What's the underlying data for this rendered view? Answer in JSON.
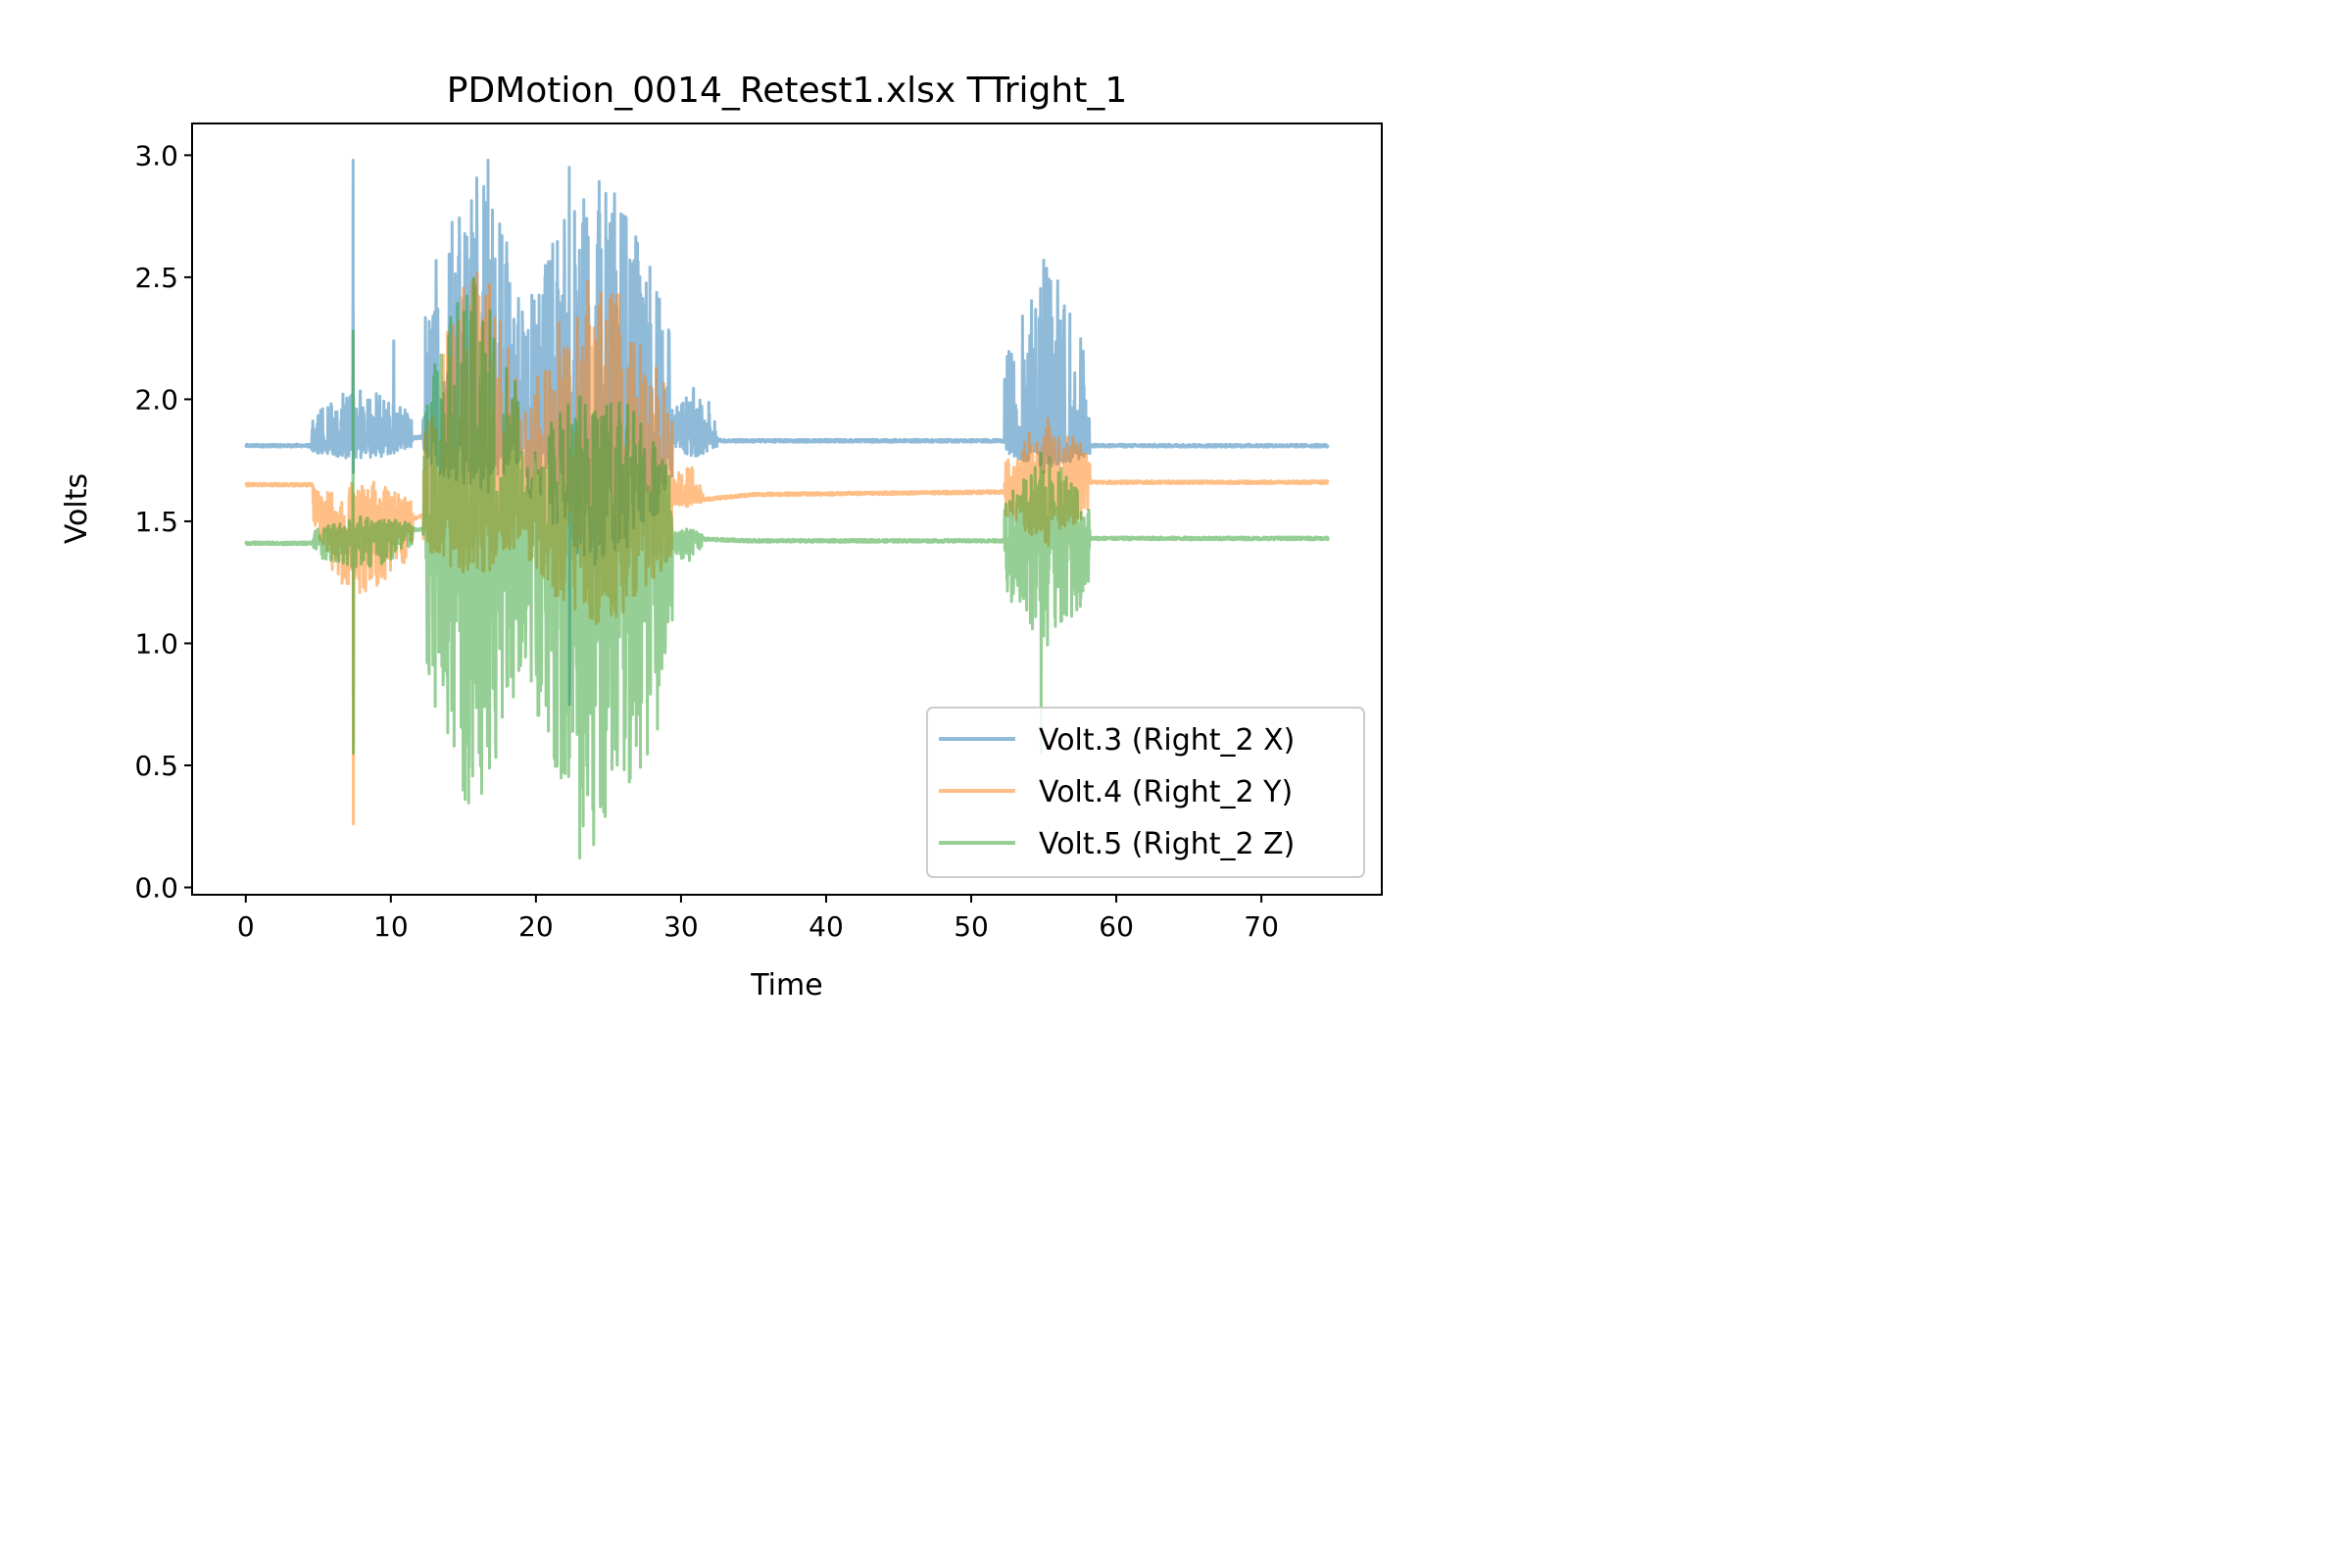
{
  "chart_data": {
    "type": "line",
    "title": "PDMotion_0014_Retest1.xlsx TTright_1",
    "xlabel": "Time",
    "ylabel": "Volts",
    "xlim": [
      -3.7,
      78.3
    ],
    "ylim": [
      -0.03,
      3.13
    ],
    "xticks": [
      0,
      10,
      20,
      30,
      40,
      50,
      60,
      70
    ],
    "yticks": [
      0.0,
      0.5,
      1.0,
      1.5,
      2.0,
      2.5,
      3.0
    ],
    "ytick_labels": [
      "0.0",
      "0.5",
      "1.0",
      "1.5",
      "2.0",
      "2.5",
      "3.0"
    ],
    "grid": false,
    "legend_position": "lower-right",
    "x_end": 74.6,
    "series": [
      {
        "name": "Volt.3 (Right_2 X)",
        "color": "#1f77b4",
        "baseline": [
          [
            0,
            1.81
          ],
          [
            4.5,
            1.81
          ],
          [
            20,
            1.88
          ],
          [
            30,
            1.85
          ],
          [
            33,
            1.83
          ],
          [
            52,
            1.83
          ],
          [
            58,
            1.81
          ],
          [
            74.6,
            1.81
          ]
        ],
        "bursts": [
          {
            "x0": 4.5,
            "x1": 11.5,
            "lo": 1.75,
            "hi": 2.06
          },
          {
            "x0": 12.2,
            "x1": 19.2,
            "lo": 1.62,
            "hi": 2.98
          },
          {
            "x0": 19.2,
            "x1": 29.4,
            "lo": 1.3,
            "hi": 2.95
          },
          {
            "x0": 29.4,
            "x1": 32.5,
            "lo": 1.76,
            "hi": 2.05
          },
          {
            "x0": 52.3,
            "x1": 58.2,
            "lo": 1.72,
            "hi": 2.57
          }
        ],
        "spikes": [
          [
            7.4,
            1.7,
            2.98
          ],
          [
            10.2,
            1.78,
            2.24
          ],
          [
            16.7,
            1.62,
            2.98
          ],
          [
            22.3,
            0.75,
            2.95
          ],
          [
            55.0,
            1.7,
            2.57
          ]
        ]
      },
      {
        "name": "Volt.4 (Right_2 Y)",
        "color": "#ff7f0e",
        "baseline": [
          [
            0,
            1.65
          ],
          [
            4.6,
            1.65
          ],
          [
            5.0,
            1.58
          ],
          [
            6.5,
            1.4
          ],
          [
            7.0,
            1.45
          ],
          [
            8.0,
            1.55
          ],
          [
            10,
            1.48
          ],
          [
            12,
            1.52
          ],
          [
            19,
            1.6
          ],
          [
            30,
            1.58
          ],
          [
            35,
            1.61
          ],
          [
            52,
            1.62
          ],
          [
            58,
            1.66
          ],
          [
            74.6,
            1.66
          ]
        ],
        "bursts": [
          {
            "x0": 4.6,
            "x1": 11.5,
            "lo": 1.2,
            "hi": 1.68
          },
          {
            "x0": 12.2,
            "x1": 19.2,
            "lo": 1.25,
            "hi": 2.55
          },
          {
            "x0": 19.2,
            "x1": 29.4,
            "lo": 1.05,
            "hi": 2.55
          },
          {
            "x0": 29.4,
            "x1": 31.5,
            "lo": 1.56,
            "hi": 1.75
          },
          {
            "x0": 52.3,
            "x1": 58.2,
            "lo": 1.4,
            "hi": 1.92
          }
        ],
        "spikes": [
          [
            7.4,
            0.26,
            1.55
          ],
          [
            16.8,
            1.3,
            2.47
          ],
          [
            55.3,
            1.4,
            1.92
          ]
        ]
      },
      {
        "name": "Volt.5 (Right_2 Z)",
        "color": "#2ca02c",
        "baseline": [
          [
            0,
            1.41
          ],
          [
            4.6,
            1.41
          ],
          [
            10,
            1.47
          ],
          [
            19,
            1.45
          ],
          [
            30,
            1.43
          ],
          [
            35,
            1.42
          ],
          [
            52,
            1.42
          ],
          [
            58,
            1.43
          ],
          [
            74.6,
            1.43
          ]
        ],
        "bursts": [
          {
            "x0": 4.6,
            "x1": 11.5,
            "lo": 1.3,
            "hi": 1.52
          },
          {
            "x0": 12.2,
            "x1": 19.2,
            "lo": 0.27,
            "hi": 2.55
          },
          {
            "x0": 19.2,
            "x1": 29.4,
            "lo": 0.12,
            "hi": 2.1
          },
          {
            "x0": 29.4,
            "x1": 31.5,
            "lo": 1.33,
            "hi": 1.47
          },
          {
            "x0": 52.3,
            "x1": 58.2,
            "lo": 0.98,
            "hi": 1.78
          }
        ],
        "spikes": [
          [
            7.4,
            0.55,
            2.28
          ],
          [
            23.0,
            0.12,
            2.0
          ],
          [
            54.8,
            0.55,
            1.78
          ]
        ]
      }
    ]
  }
}
